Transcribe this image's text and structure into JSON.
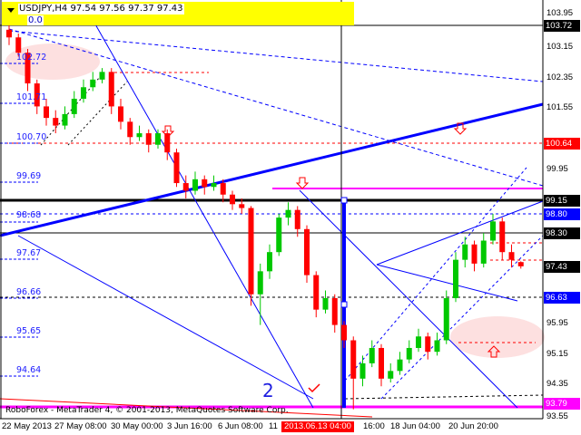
{
  "header": {
    "symbol_line": "USDJPY,H4  97.54 97.56 97.37 97.43",
    "fib_zero": "0.0"
  },
  "footer": {
    "copyright": "RoboForex - MetaTrader 4, © 2001-2013, MetaQuotes Software Corp."
  },
  "annotations": {
    "wave_label": "2"
  },
  "colors": {
    "bull": "#00c800",
    "bear": "#ff0000",
    "background": "#ffffff",
    "fib_header": "#ffff00",
    "trendline": "#0000ff",
    "level_magenta": "#ff00ff"
  },
  "chart_data": {
    "type": "candlestick",
    "title": "USDJPY,H4",
    "ohlc_last": {
      "open": 97.54,
      "high": 97.56,
      "low": 97.37,
      "close": 97.43
    },
    "ylim": [
      93.55,
      103.95
    ],
    "y_ticks": [
      "103.95",
      "103.15",
      "102.35",
      "101.55",
      "99.95",
      "95.95",
      "95.15",
      "94.35",
      "93.55"
    ],
    "x_ticks": [
      "22 May 2013",
      "27 May 08:00",
      "30 May 00:00",
      "3 Jun 16:00",
      "6 Jun 08:00",
      "11",
      "2013.06.13 04:00",
      "16:00",
      "18 Jun 04:00",
      "20 Jun 20:00"
    ],
    "cursor_time": "2013.06.13 04:00",
    "price_tags": [
      {
        "value": "103.72",
        "color": "#000000"
      },
      {
        "value": "100.64",
        "color": "#ff0000"
      },
      {
        "value": "99.15",
        "color": "#000000"
      },
      {
        "value": "98.80",
        "color": "#0000ff"
      },
      {
        "value": "98.30",
        "color": "#000000"
      },
      {
        "value": "97.43",
        "color": "#000000"
      },
      {
        "value": "96.63",
        "color": "#0000ff"
      },
      {
        "value": "93.79",
        "color": "#ff00ff"
      }
    ],
    "fib_levels": [
      "102.72",
      "101.71",
      "100.70",
      "99.69",
      "98.68",
      "97.67",
      "96.66",
      "95.65",
      "94.64"
    ],
    "candles": [
      [
        103.6,
        103.8,
        103.2,
        103.4
      ],
      [
        103.4,
        103.5,
        102.9,
        103.0
      ],
      [
        103.0,
        103.1,
        102.0,
        102.2
      ],
      [
        102.2,
        102.3,
        101.4,
        101.6
      ],
      [
        101.6,
        101.8,
        101.1,
        101.3
      ],
      [
        101.3,
        101.5,
        100.9,
        101.1
      ],
      [
        101.1,
        101.6,
        101.0,
        101.4
      ],
      [
        101.4,
        102.0,
        101.3,
        101.8
      ],
      [
        101.8,
        102.3,
        101.7,
        102.1
      ],
      [
        102.1,
        102.5,
        102.0,
        102.3
      ],
      [
        102.3,
        102.6,
        102.2,
        102.5
      ],
      [
        102.5,
        102.6,
        101.4,
        101.6
      ],
      [
        101.6,
        101.8,
        101.0,
        101.2
      ],
      [
        101.2,
        101.3,
        100.6,
        100.8
      ],
      [
        100.8,
        101.1,
        100.7,
        100.9
      ],
      [
        100.9,
        101.0,
        100.4,
        100.6
      ],
      [
        100.6,
        101.0,
        100.5,
        100.9
      ],
      [
        100.9,
        101.0,
        100.2,
        100.4
      ],
      [
        100.4,
        100.5,
        99.5,
        99.6
      ],
      [
        99.6,
        99.8,
        99.2,
        99.4
      ],
      [
        99.4,
        99.9,
        99.3,
        99.7
      ],
      [
        99.7,
        99.8,
        99.3,
        99.5
      ],
      [
        99.5,
        99.8,
        99.4,
        99.6
      ],
      [
        99.6,
        99.7,
        99.1,
        99.3
      ],
      [
        99.3,
        99.4,
        98.9,
        99.05
      ],
      [
        99.05,
        99.2,
        98.8,
        98.95
      ],
      [
        98.95,
        99.0,
        96.4,
        96.7
      ],
      [
        96.7,
        97.5,
        95.9,
        97.3
      ],
      [
        97.3,
        98.0,
        97.1,
        97.8
      ],
      [
        97.8,
        98.8,
        97.7,
        98.7
      ],
      [
        98.7,
        99.1,
        98.5,
        98.9
      ],
      [
        98.9,
        99.0,
        98.2,
        98.4
      ],
      [
        98.4,
        98.5,
        97.0,
        97.2
      ],
      [
        97.2,
        97.3,
        96.1,
        96.3
      ],
      [
        96.3,
        96.8,
        96.2,
        96.6
      ],
      [
        96.6,
        96.7,
        95.7,
        95.9
      ],
      [
        95.9,
        96.0,
        95.3,
        95.5
      ],
      [
        95.5,
        95.6,
        93.7,
        94.5
      ],
      [
        94.5,
        95.1,
        94.3,
        94.9
      ],
      [
        94.9,
        95.5,
        94.8,
        95.3
      ],
      [
        95.3,
        95.4,
        94.3,
        94.5
      ],
      [
        94.5,
        94.9,
        94.4,
        94.7
      ],
      [
        94.7,
        95.2,
        94.6,
        95.0
      ],
      [
        95.0,
        95.5,
        94.9,
        95.3
      ],
      [
        95.3,
        95.8,
        95.2,
        95.6
      ],
      [
        95.6,
        95.7,
        95.0,
        95.2
      ],
      [
        95.2,
        95.7,
        95.1,
        95.5
      ],
      [
        95.5,
        96.8,
        95.4,
        96.6
      ],
      [
        96.6,
        97.8,
        96.5,
        97.6
      ],
      [
        97.6,
        98.2,
        97.4,
        98.0
      ],
      [
        98.0,
        98.1,
        97.3,
        97.5
      ],
      [
        97.5,
        98.3,
        97.4,
        98.1
      ],
      [
        98.1,
        98.8,
        98.0,
        98.6
      ],
      [
        98.6,
        98.7,
        97.6,
        97.8
      ],
      [
        97.8,
        98.0,
        97.4,
        97.6
      ],
      [
        97.54,
        97.56,
        97.37,
        97.43
      ]
    ]
  }
}
